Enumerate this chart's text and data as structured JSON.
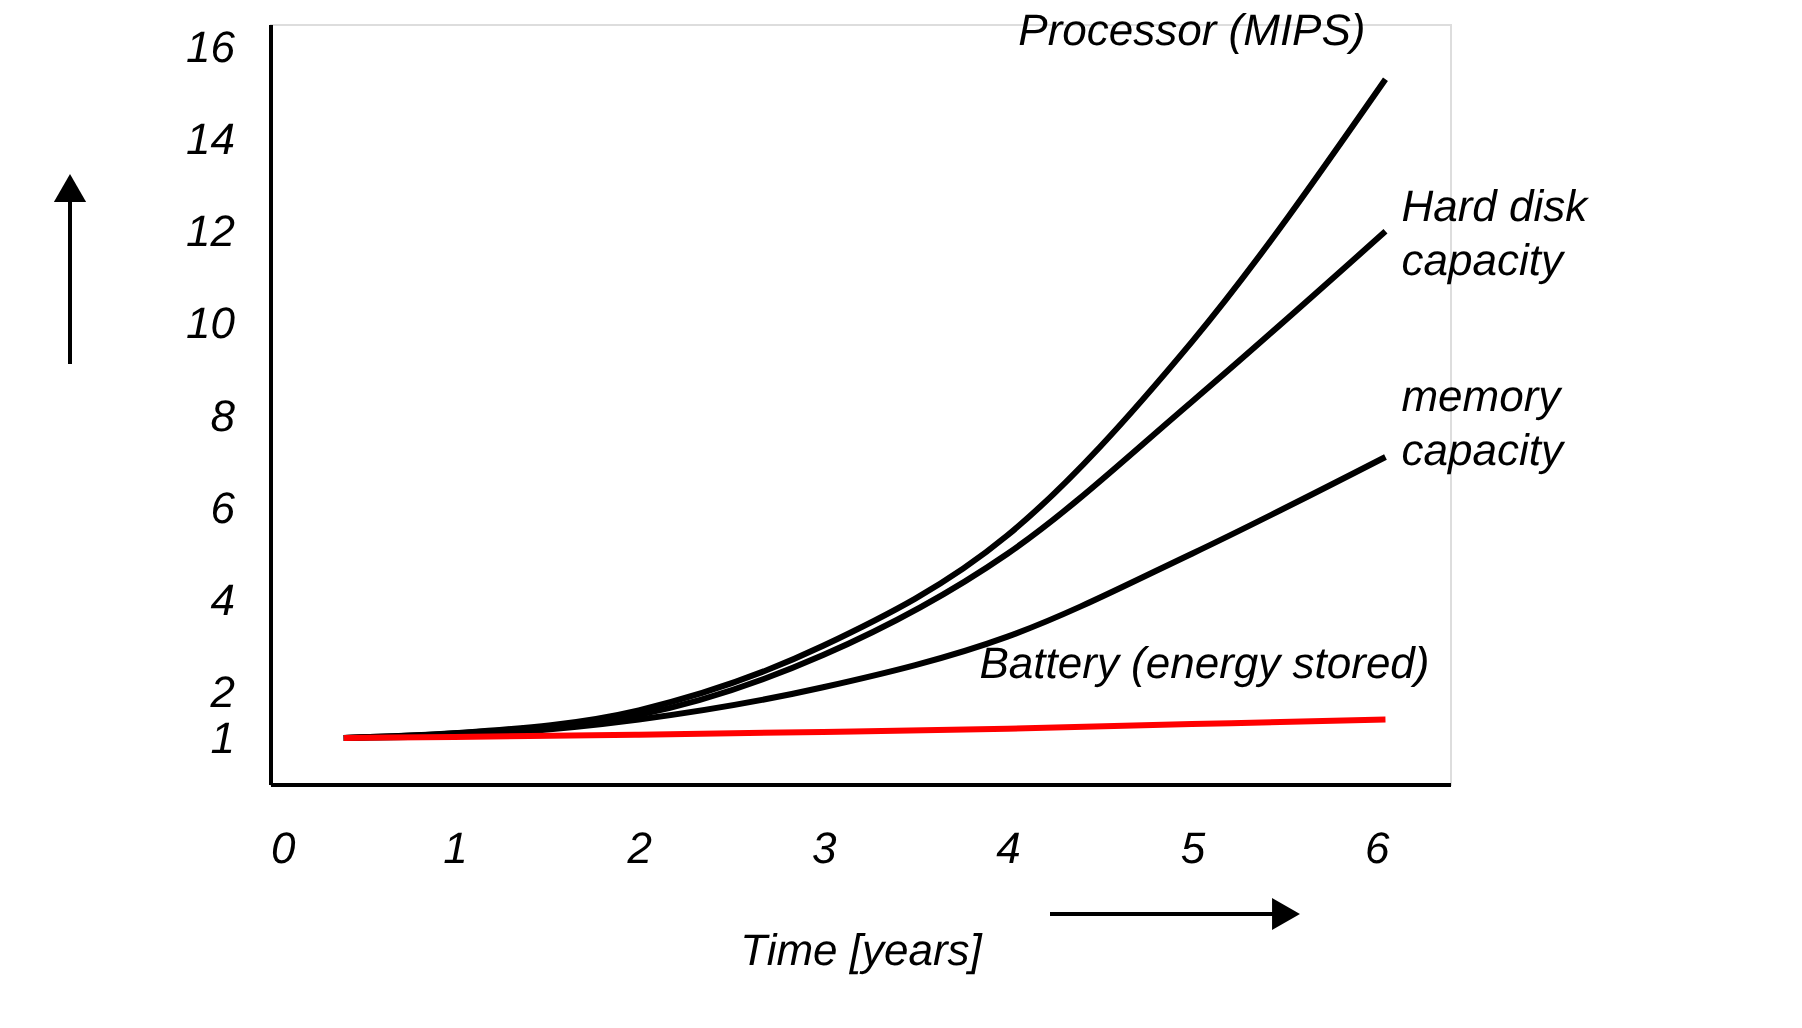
{
  "chart_data": {
    "type": "line",
    "xlabel": "Time [years]",
    "x": [
      0.4,
      1,
      2,
      3,
      4,
      5,
      6.05
    ],
    "series": [
      {
        "name": "Processor (MIPS)",
        "color": "#000000",
        "values": [
          1,
          1.1,
          1.6,
          3.0,
          5.4,
          9.6,
          15.3
        ]
      },
      {
        "name": "Hard disk\ncapacity",
        "color": "#000000",
        "values": [
          1,
          1.1,
          1.5,
          2.8,
          5.0,
          8.3,
          12.0
        ]
      },
      {
        "name": "memory\ncapacity",
        "color": "#000000",
        "values": [
          1,
          1.05,
          1.4,
          2.1,
          3.2,
          5.0,
          7.1
        ]
      },
      {
        "name": "Battery (energy stored)",
        "color": "#ff0000",
        "values": [
          1,
          1.02,
          1.07,
          1.13,
          1.2,
          1.3,
          1.4
        ]
      }
    ],
    "xlim": [
      0,
      6.4
    ],
    "xticks": [
      0,
      1,
      2,
      3,
      4,
      5,
      6
    ],
    "ylim": [
      0,
      16.5
    ],
    "yticks": [
      1,
      2,
      4,
      6,
      8,
      10,
      12,
      14,
      16
    ],
    "grid": false,
    "marker": "none",
    "line_style": "solid"
  }
}
